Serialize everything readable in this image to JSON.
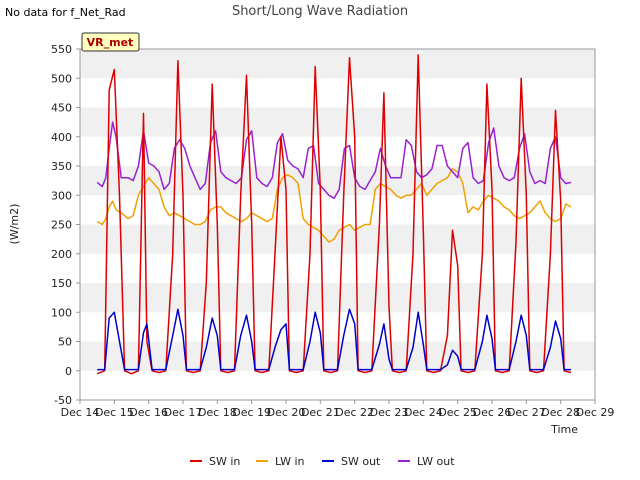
{
  "page": {
    "nodata_text": "No data for f_Net_Rad",
    "title": "Short/Long Wave Radiation",
    "badge": "VR_met"
  },
  "chart_data": {
    "type": "line",
    "title": "Short/Long Wave Radiation",
    "xlabel": "Time",
    "ylabel": "(W/m2)",
    "xlim": [
      14,
      29
    ],
    "ylim": [
      -50,
      550
    ],
    "x_tick_values": [
      14,
      15,
      16,
      17,
      18,
      19,
      20,
      21,
      22,
      23,
      24,
      25,
      26,
      27,
      28,
      29
    ],
    "x_tick_labels": [
      "Dec 14",
      "Dec 15",
      "Dec 16",
      "Dec 17",
      "Dec 18",
      "Dec 19",
      "Dec 20",
      "Dec 21",
      "Dec 22",
      "Dec 23",
      "Dec 24",
      "Dec 25",
      "Dec 26",
      "Dec 27",
      "Dec 28",
      "Dec 29"
    ],
    "y_ticks": [
      -50,
      0,
      50,
      100,
      150,
      200,
      250,
      300,
      350,
      400,
      450,
      500,
      550
    ],
    "grid": "horizontal bands",
    "legend_position": "bottom",
    "series": [
      {
        "name": "SW in",
        "color": "#dd0000",
        "x": [
          14.5,
          14.72,
          14.85,
          15.0,
          15.15,
          15.3,
          15.5,
          15.7,
          15.85,
          15.95,
          16.1,
          16.3,
          16.5,
          16.7,
          16.85,
          17.0,
          17.1,
          17.3,
          17.5,
          17.68,
          17.85,
          18.0,
          18.1,
          18.3,
          18.5,
          18.68,
          18.85,
          19.0,
          19.1,
          19.3,
          19.5,
          19.68,
          19.85,
          20.0,
          20.1,
          20.3,
          20.5,
          20.7,
          20.85,
          21.0,
          21.1,
          21.3,
          21.5,
          21.68,
          21.85,
          22.0,
          22.1,
          22.3,
          22.5,
          22.72,
          22.85,
          23.0,
          23.1,
          23.3,
          23.5,
          23.7,
          23.85,
          24.0,
          24.1,
          24.3,
          24.5,
          24.7,
          24.85,
          25.0,
          25.1,
          25.3,
          25.5,
          25.72,
          25.85,
          26.0,
          26.1,
          26.3,
          26.5,
          26.7,
          26.85,
          27.0,
          27.1,
          27.3,
          27.5,
          27.7,
          27.85,
          28.0,
          28.1,
          28.3
        ],
        "y": [
          -5,
          0,
          480,
          515,
          300,
          0,
          -5,
          0,
          440,
          50,
          0,
          -3,
          0,
          200,
          530,
          300,
          0,
          -3,
          0,
          150,
          490,
          250,
          0,
          -3,
          0,
          300,
          505,
          250,
          0,
          -3,
          0,
          200,
          400,
          310,
          0,
          -3,
          0,
          200,
          520,
          310,
          0,
          -3,
          0,
          300,
          535,
          400,
          0,
          -3,
          0,
          250,
          475,
          110,
          0,
          -3,
          0,
          200,
          540,
          240,
          0,
          -3,
          0,
          60,
          240,
          180,
          0,
          -3,
          0,
          200,
          490,
          310,
          0,
          -3,
          0,
          220,
          500,
          300,
          0,
          -3,
          0,
          200,
          445,
          290,
          0,
          -3
        ]
      },
      {
        "name": "LW in",
        "color": "#f0a000",
        "x": [
          14.5,
          14.65,
          14.75,
          14.85,
          14.95,
          15.05,
          15.2,
          15.4,
          15.55,
          15.7,
          15.85,
          16.0,
          16.15,
          16.3,
          16.45,
          16.6,
          16.75,
          16.9,
          17.05,
          17.2,
          17.35,
          17.5,
          17.65,
          17.8,
          17.95,
          18.1,
          18.25,
          18.4,
          18.55,
          18.7,
          18.85,
          19.0,
          19.15,
          19.3,
          19.45,
          19.6,
          19.75,
          19.9,
          20.05,
          20.2,
          20.35,
          20.5,
          20.65,
          20.8,
          20.95,
          21.1,
          21.25,
          21.4,
          21.55,
          21.7,
          21.85,
          22.0,
          22.15,
          22.3,
          22.45,
          22.6,
          22.75,
          22.9,
          23.05,
          23.2,
          23.35,
          23.5,
          23.65,
          23.8,
          23.95,
          24.1,
          24.25,
          24.4,
          24.55,
          24.7,
          24.85,
          25.0,
          25.15,
          25.3,
          25.45,
          25.6,
          25.75,
          25.9,
          26.05,
          26.2,
          26.35,
          26.5,
          26.65,
          26.8,
          26.95,
          27.1,
          27.25,
          27.4,
          27.55,
          27.7,
          27.85,
          28.0,
          28.15,
          28.3
        ],
        "y": [
          255,
          250,
          260,
          280,
          290,
          275,
          270,
          260,
          265,
          300,
          315,
          330,
          320,
          310,
          280,
          265,
          270,
          265,
          260,
          255,
          250,
          250,
          255,
          275,
          280,
          280,
          270,
          265,
          260,
          255,
          260,
          270,
          265,
          260,
          255,
          260,
          310,
          330,
          335,
          330,
          320,
          260,
          250,
          245,
          240,
          230,
          220,
          225,
          240,
          245,
          250,
          240,
          245,
          250,
          250,
          310,
          320,
          315,
          310,
          300,
          295,
          300,
          300,
          310,
          320,
          300,
          310,
          320,
          325,
          330,
          345,
          340,
          320,
          270,
          280,
          275,
          290,
          300,
          295,
          290,
          280,
          275,
          265,
          260,
          265,
          270,
          280,
          290,
          270,
          260,
          255,
          260,
          285,
          280
        ]
      },
      {
        "name": "SW out",
        "color": "#0000cc",
        "x": [
          14.5,
          14.72,
          14.85,
          15.0,
          15.15,
          15.3,
          15.5,
          15.7,
          15.85,
          15.95,
          16.1,
          16.3,
          16.5,
          16.7,
          16.85,
          17.0,
          17.1,
          17.3,
          17.5,
          17.68,
          17.85,
          18.0,
          18.1,
          18.3,
          18.5,
          18.68,
          18.85,
          19.0,
          19.1,
          19.3,
          19.5,
          19.68,
          19.85,
          20.0,
          20.1,
          20.3,
          20.5,
          20.7,
          20.85,
          21.0,
          21.1,
          21.3,
          21.5,
          21.68,
          21.85,
          22.0,
          22.1,
          22.3,
          22.5,
          22.72,
          22.85,
          23.0,
          23.1,
          23.3,
          23.5,
          23.7,
          23.85,
          24.0,
          24.1,
          24.3,
          24.5,
          24.7,
          24.85,
          25.0,
          25.1,
          25.3,
          25.5,
          25.72,
          25.85,
          26.0,
          26.1,
          26.3,
          26.5,
          26.7,
          26.85,
          27.0,
          27.1,
          27.3,
          27.5,
          27.7,
          27.85,
          28.0,
          28.1,
          28.3
        ],
        "y": [
          2,
          2,
          90,
          100,
          50,
          2,
          2,
          2,
          65,
          80,
          2,
          2,
          2,
          60,
          105,
          60,
          2,
          2,
          2,
          40,
          90,
          60,
          2,
          2,
          2,
          60,
          95,
          50,
          2,
          2,
          2,
          40,
          70,
          80,
          2,
          2,
          2,
          50,
          100,
          65,
          2,
          2,
          2,
          60,
          105,
          80,
          2,
          2,
          2,
          45,
          80,
          20,
          2,
          2,
          2,
          40,
          100,
          45,
          2,
          2,
          2,
          10,
          35,
          25,
          2,
          2,
          2,
          50,
          95,
          55,
          2,
          2,
          2,
          50,
          95,
          60,
          2,
          2,
          2,
          40,
          85,
          55,
          2,
          2
        ]
      },
      {
        "name": "LW out",
        "color": "#9a20d0",
        "x": [
          14.5,
          14.65,
          14.75,
          14.85,
          14.95,
          15.05,
          15.2,
          15.4,
          15.55,
          15.7,
          15.85,
          16.0,
          16.15,
          16.3,
          16.45,
          16.6,
          16.75,
          16.9,
          17.05,
          17.2,
          17.35,
          17.5,
          17.65,
          17.8,
          17.95,
          18.1,
          18.25,
          18.4,
          18.55,
          18.7,
          18.85,
          19.0,
          19.15,
          19.3,
          19.45,
          19.6,
          19.75,
          19.9,
          20.05,
          20.2,
          20.35,
          20.5,
          20.65,
          20.8,
          20.95,
          21.1,
          21.25,
          21.4,
          21.55,
          21.7,
          21.85,
          22.0,
          22.15,
          22.3,
          22.45,
          22.6,
          22.75,
          22.9,
          23.05,
          23.2,
          23.35,
          23.5,
          23.65,
          23.8,
          23.95,
          24.1,
          24.25,
          24.4,
          24.55,
          24.7,
          24.85,
          25.0,
          25.15,
          25.3,
          25.45,
          25.6,
          25.75,
          25.9,
          26.05,
          26.2,
          26.35,
          26.5,
          26.65,
          26.8,
          26.95,
          27.1,
          27.25,
          27.4,
          27.55,
          27.7,
          27.85,
          28.0,
          28.15,
          28.3
        ],
        "y": [
          322,
          315,
          330,
          380,
          425,
          400,
          330,
          330,
          325,
          350,
          410,
          355,
          350,
          340,
          310,
          320,
          380,
          395,
          380,
          350,
          330,
          310,
          320,
          390,
          410,
          340,
          330,
          325,
          320,
          330,
          395,
          410,
          330,
          320,
          315,
          330,
          390,
          405,
          360,
          350,
          345,
          330,
          380,
          385,
          320,
          310,
          300,
          295,
          310,
          380,
          385,
          330,
          315,
          310,
          325,
          340,
          380,
          350,
          330,
          330,
          330,
          395,
          385,
          340,
          330,
          335,
          345,
          385,
          385,
          350,
          340,
          330,
          380,
          390,
          330,
          320,
          325,
          390,
          415,
          350,
          330,
          325,
          330,
          380,
          405,
          340,
          320,
          325,
          320,
          380,
          400,
          330,
          320,
          322
        ]
      }
    ]
  }
}
